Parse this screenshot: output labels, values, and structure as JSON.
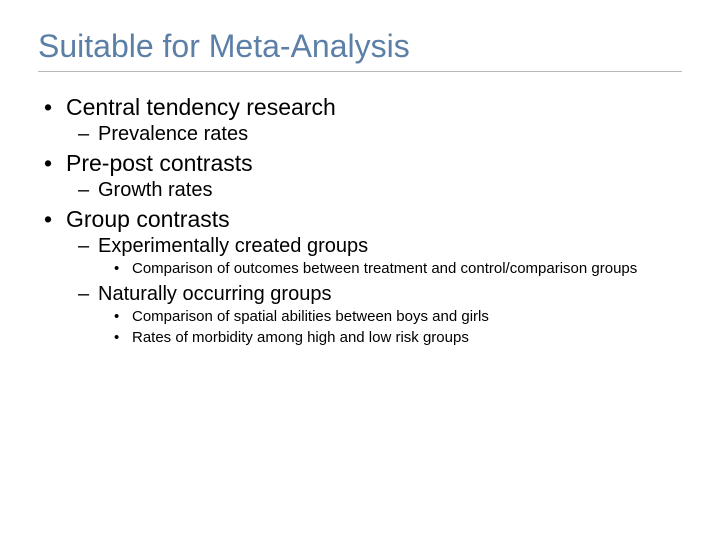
{
  "colors": {
    "title": "#5b7fa6",
    "text": "#000000",
    "divider": "#b8b8b8",
    "background": "#ffffff"
  },
  "typography": {
    "title_fontsize": 32,
    "lvl1_fontsize": 23,
    "lvl2_fontsize": 20,
    "lvl3_fontsize": 15,
    "font_family": "Verdana"
  },
  "title": "Suitable for Meta-Analysis",
  "bullets": {
    "lvl1": "•",
    "lvl2": "–",
    "lvl3": "•"
  },
  "items": [
    {
      "text": "Central tendency research",
      "sub": [
        {
          "text": "Prevalence rates"
        }
      ]
    },
    {
      "text": "Pre-post contrasts",
      "sub": [
        {
          "text": "Growth rates"
        }
      ]
    },
    {
      "text": "Group contrasts",
      "sub": [
        {
          "text": "Experimentally created groups",
          "sub": [
            {
              "text": "Comparison of outcomes between treatment and control/comparison groups"
            }
          ]
        },
        {
          "text": "Naturally occurring groups",
          "sub": [
            {
              "text": "Comparison of spatial abilities between boys and girls"
            },
            {
              "text": "Rates of morbidity among high and low risk groups"
            }
          ]
        }
      ]
    }
  ]
}
